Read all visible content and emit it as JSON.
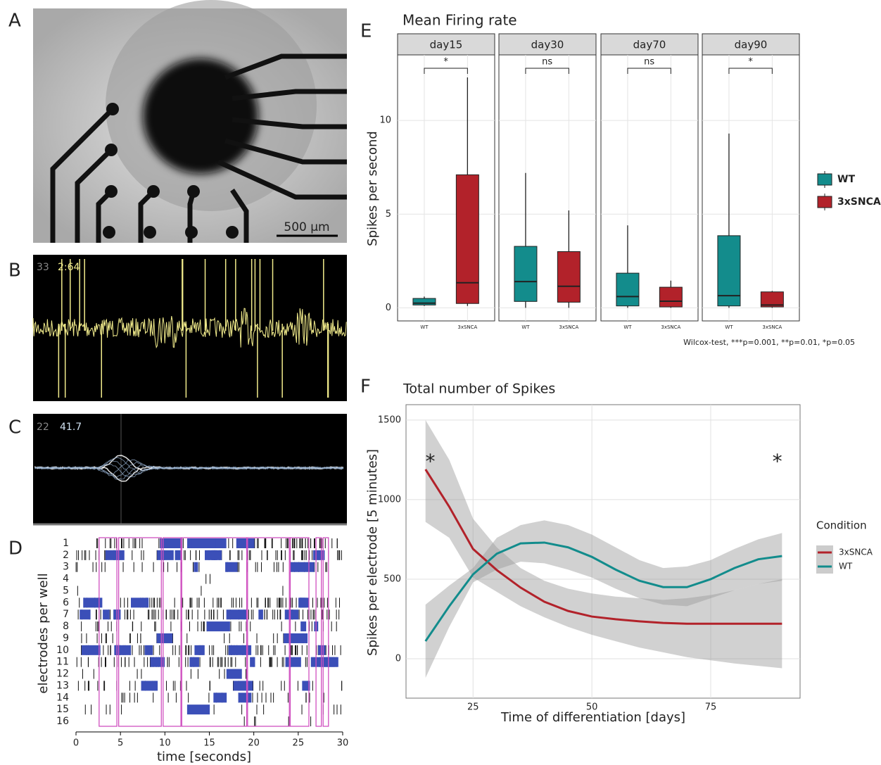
{
  "panel_labels": [
    "A",
    "B",
    "C",
    "D",
    "E",
    "F"
  ],
  "images": {
    "A": {
      "scale_bar": "500 µm"
    },
    "B": {
      "channel": "33",
      "value": "2:64"
    },
    "C": {
      "channel": "22",
      "value": "41.7"
    }
  },
  "chart_data": [
    {
      "type": "raster",
      "xlabel": "time [seconds]",
      "ylabel": "electrodes per well",
      "categories": [
        "1",
        "2",
        "3",
        "4",
        "5",
        "6",
        "7",
        "8",
        "9",
        "10",
        "11",
        "12",
        "13",
        "14",
        "15",
        "16"
      ],
      "xlim": [
        0,
        30
      ],
      "xticks": [
        0,
        5,
        10,
        15,
        20,
        25,
        30
      ],
      "bursts": [
        [
          2.6,
          4.6
        ],
        [
          4.8,
          9.6
        ],
        [
          9.8,
          11.8
        ],
        [
          11.9,
          19.2
        ],
        [
          19.3,
          24.0
        ],
        [
          24.1,
          26.2
        ],
        [
          27.0,
          27.6
        ],
        [
          27.8,
          28.4
        ]
      ],
      "burst_color": "#d050c0"
    },
    {
      "type": "box",
      "title": "Mean Firing rate",
      "ylabel": "Spikes per second",
      "facets": [
        "day15",
        "day30",
        "day70",
        "day90"
      ],
      "significance": [
        "*",
        "ns",
        "ns",
        "*"
      ],
      "categories": [
        "WT",
        "3xSNCA"
      ],
      "series": [
        {
          "name": "WT",
          "color": "#138c8c",
          "min": [
            0.1,
            0,
            0,
            0
          ],
          "q1": [
            0.15,
            0.34,
            0.1,
            0.1
          ],
          "median": [
            0.25,
            1.4,
            0.6,
            0.65
          ],
          "q3": [
            0.5,
            3.28,
            1.85,
            3.85
          ],
          "max": [
            0.6,
            7.2,
            4.4,
            9.3
          ]
        },
        {
          "name": "3xSNCA",
          "color": "#b2222a",
          "min": [
            0.1,
            0,
            0,
            0
          ],
          "q1": [
            0.23,
            0.3,
            0.05,
            0.05
          ],
          "median": [
            1.34,
            1.15,
            0.35,
            0.15
          ],
          "q3": [
            7.1,
            3.0,
            1.1,
            0.85
          ],
          "max": [
            12.3,
            5.2,
            1.45,
            0.9
          ]
        }
      ],
      "ylim": [
        -0.7,
        13.5
      ],
      "yticks": [
        0,
        5,
        10
      ],
      "grid": true,
      "caption": "Wilcox-test, ***p=0.001, **p=0.01, *p=0.05"
    },
    {
      "type": "smooth",
      "title": "Total number of Spikes",
      "xlabel": "Time of differentiation [days]",
      "ylabel": "Spikes per electrode [5 minutes]",
      "legend_title": "Condition",
      "x": [
        15,
        20,
        25,
        30,
        35,
        40,
        45,
        50,
        55,
        60,
        65,
        70,
        75,
        80,
        85,
        90
      ],
      "series": [
        {
          "name": "3xSNCA",
          "color": "#b2222a",
          "values": [
            1190,
            955,
            690,
            557,
            447,
            358,
            300,
            265,
            248,
            235,
            225,
            220,
            220,
            220,
            220,
            220
          ],
          "upper": [
            1500,
            1250,
            880,
            700,
            570,
            490,
            440,
            410,
            390,
            380,
            370,
            380,
            400,
            430,
            470,
            500
          ],
          "lower": [
            860,
            760,
            510,
            420,
            330,
            260,
            200,
            150,
            110,
            70,
            40,
            10,
            -10,
            -30,
            -45,
            -60
          ]
        },
        {
          "name": "WT",
          "color": "#128c8c",
          "values": [
            110,
            330,
            530,
            660,
            725,
            730,
            700,
            640,
            560,
            490,
            450,
            450,
            500,
            570,
            625,
            645
          ],
          "upper": [
            340,
            460,
            570,
            760,
            840,
            870,
            840,
            780,
            700,
            620,
            570,
            580,
            620,
            690,
            750,
            790
          ],
          "lower": [
            -120,
            200,
            480,
            560,
            610,
            600,
            560,
            510,
            440,
            380,
            340,
            330,
            380,
            430,
            470,
            490
          ]
        }
      ],
      "xlim": [
        10.9,
        93.8
      ],
      "ylim": [
        -248,
        1597
      ],
      "xticks": [
        25,
        50,
        75
      ],
      "yticks": [
        0,
        500,
        1000,
        1500
      ],
      "grid": true,
      "annotations": [
        {
          "text": "*",
          "x": 16,
          "y": 1270
        },
        {
          "text": "*",
          "x": 89,
          "y": 1270
        }
      ]
    }
  ]
}
